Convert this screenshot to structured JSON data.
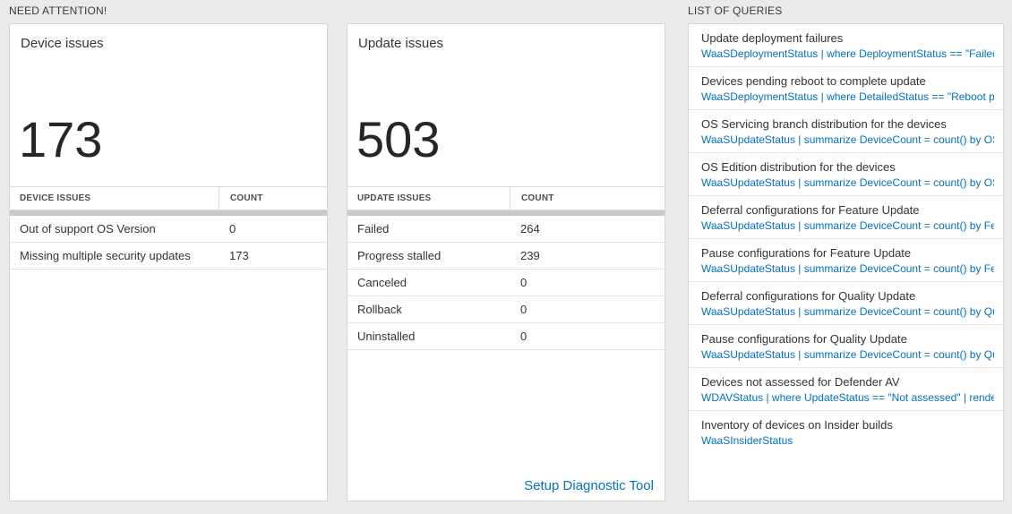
{
  "colors": {
    "page_background": "#eaeaea",
    "accent_blue": "#0072c6",
    "scrollbar_gray": "#c9c9c9"
  },
  "sections": {
    "need_attention_label": "NEED ATTENTION!",
    "queries_label": "LIST OF QUERIES"
  },
  "device_card": {
    "title": "Device issues",
    "count": "173",
    "table": {
      "headers": {
        "issues": "DEVICE ISSUES",
        "count": "COUNT"
      },
      "rows": [
        {
          "label": "Out of support OS Version",
          "count": "0"
        },
        {
          "label": "Missing multiple security updates",
          "count": "173"
        }
      ]
    }
  },
  "update_card": {
    "title": "Update issues",
    "count": "503",
    "table": {
      "headers": {
        "issues": "UPDATE ISSUES",
        "count": "COUNT"
      },
      "rows": [
        {
          "label": "Failed",
          "count": "264"
        },
        {
          "label": "Progress stalled",
          "count": "239"
        },
        {
          "label": "Canceled",
          "count": "0"
        },
        {
          "label": "Rollback",
          "count": "0"
        },
        {
          "label": "Uninstalled",
          "count": "0"
        }
      ]
    },
    "footer_link": "Setup Diagnostic Tool"
  },
  "queries_card": {
    "items": [
      {
        "title": "Update deployment failures",
        "query": "WaaSDeploymentStatus | where DeploymentStatus == \"Failed\" |..."
      },
      {
        "title": "Devices pending reboot to complete update",
        "query": "WaaSDeploymentStatus | where DetailedStatus == \"Reboot pend..."
      },
      {
        "title": "OS Servicing branch distribution for the devices",
        "query": "WaaSUpdateStatus | summarize DeviceCount = count() by OSSer..."
      },
      {
        "title": "OS Edition distribution for the devices",
        "query": "WaaSUpdateStatus | summarize DeviceCount = count() by OSEdit..."
      },
      {
        "title": "Deferral configurations for Feature Update",
        "query": "WaaSUpdateStatus | summarize DeviceCount = count() by Featur..."
      },
      {
        "title": "Pause configurations for Feature Update",
        "query": "WaaSUpdateStatus | summarize DeviceCount = count() by Featur..."
      },
      {
        "title": "Deferral configurations for Quality Update",
        "query": "WaaSUpdateStatus | summarize DeviceCount = count() by Qualit..."
      },
      {
        "title": "Pause configurations for Quality Update",
        "query": "WaaSUpdateStatus | summarize DeviceCount = count() by Qualit..."
      },
      {
        "title": "Devices not assessed for Defender AV",
        "query": "WDAVStatus | where UpdateStatus == \"Not assessed\" | render ta..."
      },
      {
        "title": "Inventory of devices on Insider builds",
        "query": "WaaSInsiderStatus"
      }
    ]
  }
}
